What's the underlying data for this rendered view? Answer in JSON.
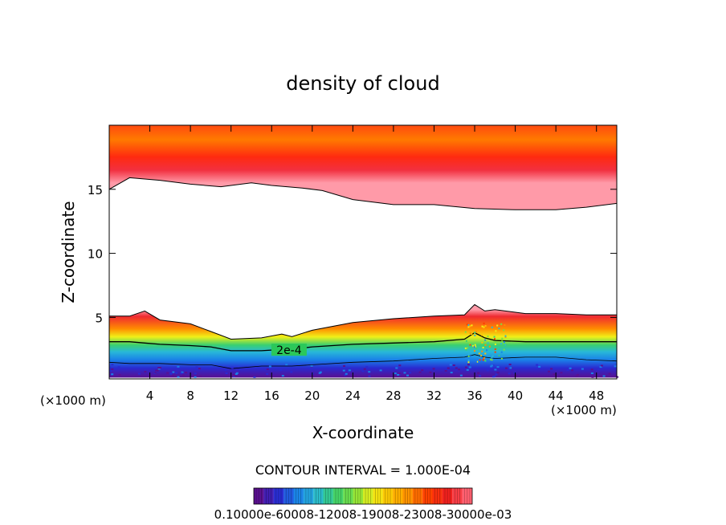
{
  "chart_data": {
    "type": "contour",
    "title": "density of cloud",
    "xlabel": "X-coordinate",
    "ylabel": "Z-coordinate",
    "x_unit_label": "(×1000 m)",
    "y_unit_label": "(×1000 m)",
    "xlim": [
      0,
      50
    ],
    "ylim": [
      0.2,
      20
    ],
    "xticks": [
      4,
      8,
      12,
      16,
      20,
      24,
      28,
      32,
      36,
      40,
      44,
      48
    ],
    "yticks": [
      5,
      10,
      15
    ],
    "contour_interval_label": "CONTOUR INTERVAL = 1.000E-04",
    "contour_label": "2e-4",
    "colorbar_labels": "0.10000e-60008-12008-19008-23008-30000e-03",
    "colormap": [
      "#5a1090",
      "#2a2ad0",
      "#1a80e8",
      "#28b8d8",
      "#3ad070",
      "#7ae040",
      "#f0f018",
      "#ffc000",
      "#ff8c00",
      "#ff3a00",
      "#ef2020",
      "#ff6070"
    ],
    "upper_layer": {
      "x": [
        0,
        2,
        5,
        8,
        11,
        14,
        16,
        19,
        21,
        24,
        28,
        32,
        36,
        40,
        44,
        47,
        50
      ],
      "bottom_z": [
        15,
        15.9,
        15.7,
        15.4,
        15.2,
        15.5,
        15.3,
        15.1,
        14.9,
        14.2,
        13.8,
        13.8,
        13.5,
        13.4,
        13.4,
        13.6,
        13.9
      ],
      "top_z": 20
    },
    "lower_layer": {
      "x": [
        0,
        2,
        3.5,
        5,
        8,
        10,
        12,
        15,
        17,
        18,
        20,
        24,
        28,
        32,
        35,
        36,
        37,
        38,
        41,
        44,
        47,
        50
      ],
      "top_z": [
        5.1,
        5.1,
        5.5,
        4.8,
        4.5,
        3.9,
        3.3,
        3.4,
        3.7,
        3.5,
        4.0,
        4.6,
        4.9,
        5.1,
        5.2,
        6.0,
        5.5,
        5.6,
        5.3,
        5.3,
        5.2,
        5.2
      ],
      "line_2e4_z": [
        3.1,
        3.1,
        3.0,
        2.9,
        2.8,
        2.7,
        2.4,
        2.4,
        2.5,
        2.5,
        2.7,
        2.9,
        3.0,
        3.1,
        3.3,
        3.8,
        3.4,
        3.2,
        3.1,
        3.1,
        3.1,
        3.1
      ],
      "line_low_z": [
        1.5,
        1.4,
        1.4,
        1.4,
        1.3,
        1.3,
        1.0,
        1.2,
        1.2,
        1.2,
        1.3,
        1.5,
        1.6,
        1.8,
        1.9,
        2.1,
        1.9,
        1.8,
        1.9,
        1.9,
        1.7,
        1.6
      ],
      "bottom_z": 0.3
    }
  }
}
